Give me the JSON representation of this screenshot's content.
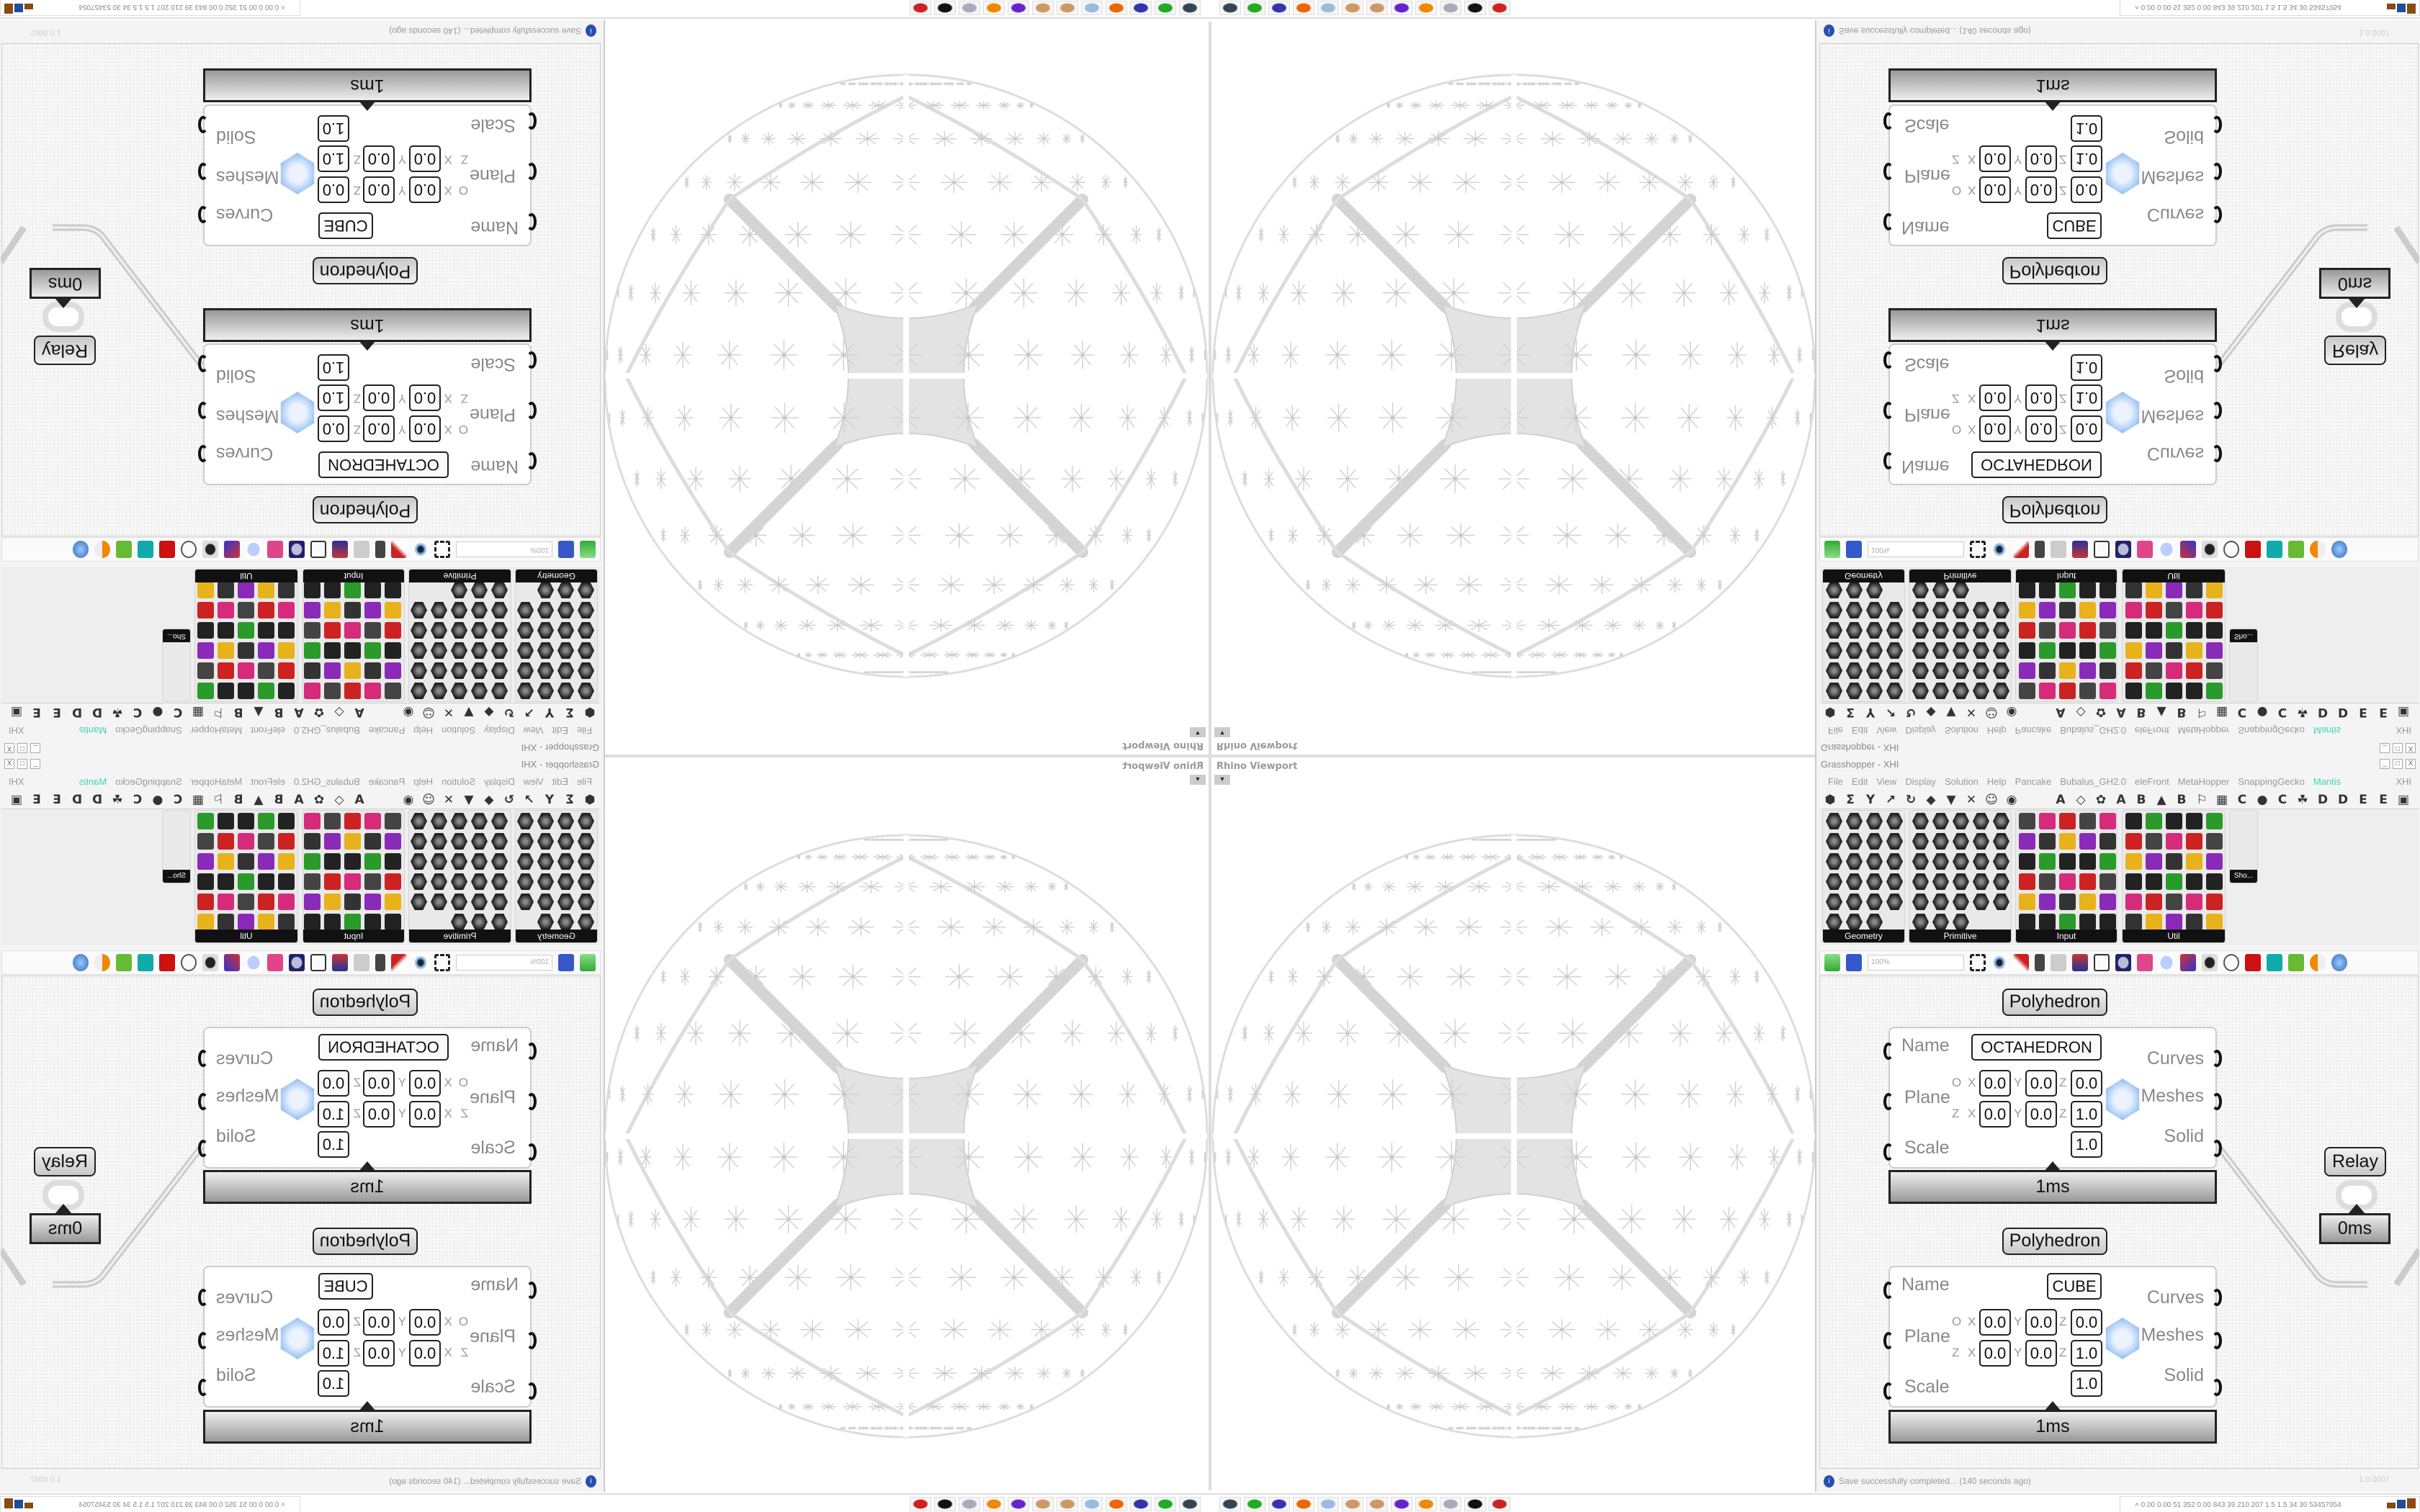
{
  "viewport": {
    "label": "Rhino Viewport",
    "arrow": "▾"
  },
  "window": {
    "title": "Grasshopper - XHI",
    "doc_name": "XHI",
    "min": "_",
    "max": "□",
    "close": "X"
  },
  "menu": [
    "File",
    "Edit",
    "View",
    "Display",
    "Solution",
    "Help",
    "Pancake",
    "Bubalus_GH2.0",
    "eleFront",
    "MetaHopper",
    "SnappingGecko",
    "Mantis"
  ],
  "menu_active": "Mantis",
  "tabs": [
    "⬢",
    "Σ",
    "Y",
    "↗",
    "↻",
    "◆",
    "▼",
    "✕",
    "☺",
    "◉",
    "A",
    "◇",
    "✿",
    "A",
    "B",
    "▲",
    "B",
    "⚐",
    "▦",
    "C",
    "●",
    "C",
    "☘",
    "D",
    "D",
    "E",
    "E",
    "▣"
  ],
  "ribbon": {
    "panels": [
      "Geometry",
      "Primitive",
      "Input",
      "Util"
    ],
    "overflow_label": "Sho..."
  },
  "toolbar": {
    "zoom": "100%"
  },
  "nodes": [
    {
      "title": "Polyhedron",
      "name_label": "Name",
      "name_value": "OCTAHEDRON",
      "plane_label": "Plane",
      "scale_label": "Scale",
      "origin": [
        "0.0",
        "0.0",
        "0.0"
      ],
      "zaxis": [
        "0.0",
        "0.0",
        "1.0"
      ],
      "scale": "1.0",
      "outputs": [
        "Curves",
        "Meshes",
        "Solid"
      ],
      "time": "1ms"
    },
    {
      "title": "Polyhedron",
      "name_label": "Name",
      "name_value": "CUBE",
      "plane_label": "Plane",
      "scale_label": "Scale",
      "origin": [
        "0.0",
        "0.0",
        "0.0"
      ],
      "zaxis": [
        "0.0",
        "0.0",
        "1.0"
      ],
      "scale": "1.0",
      "outputs": [
        "Curves",
        "Meshes",
        "Solid"
      ],
      "time": "1ms"
    }
  ],
  "axis_letters": {
    "o": "O",
    "z": "Z",
    "x": "X",
    "y": "Y",
    "zz": "Z"
  },
  "relay": {
    "label": "Relay",
    "time": "0ms"
  },
  "status": {
    "message": "Save successfully completed... (140 seconds ago)",
    "version": "1.0.0007",
    "icon": "i"
  },
  "taskbar": {
    "icons": [
      "remote-desktop",
      "gpu-monitor",
      "floppy-64",
      "firefox",
      "calculator",
      "paint",
      "paint",
      "messenger",
      "blender",
      "notepad",
      "rhino",
      "settings-gear"
    ],
    "tray_text": "0.00 0.00  51  352  0.00  843  39  210  207  1.5  1.5  34  30  53457054",
    "tray_arrow": "˄"
  },
  "colors": {
    "accent": "#3fd6b0",
    "mesh_icon": "#7fb2ee",
    "node_border": "#222222"
  }
}
